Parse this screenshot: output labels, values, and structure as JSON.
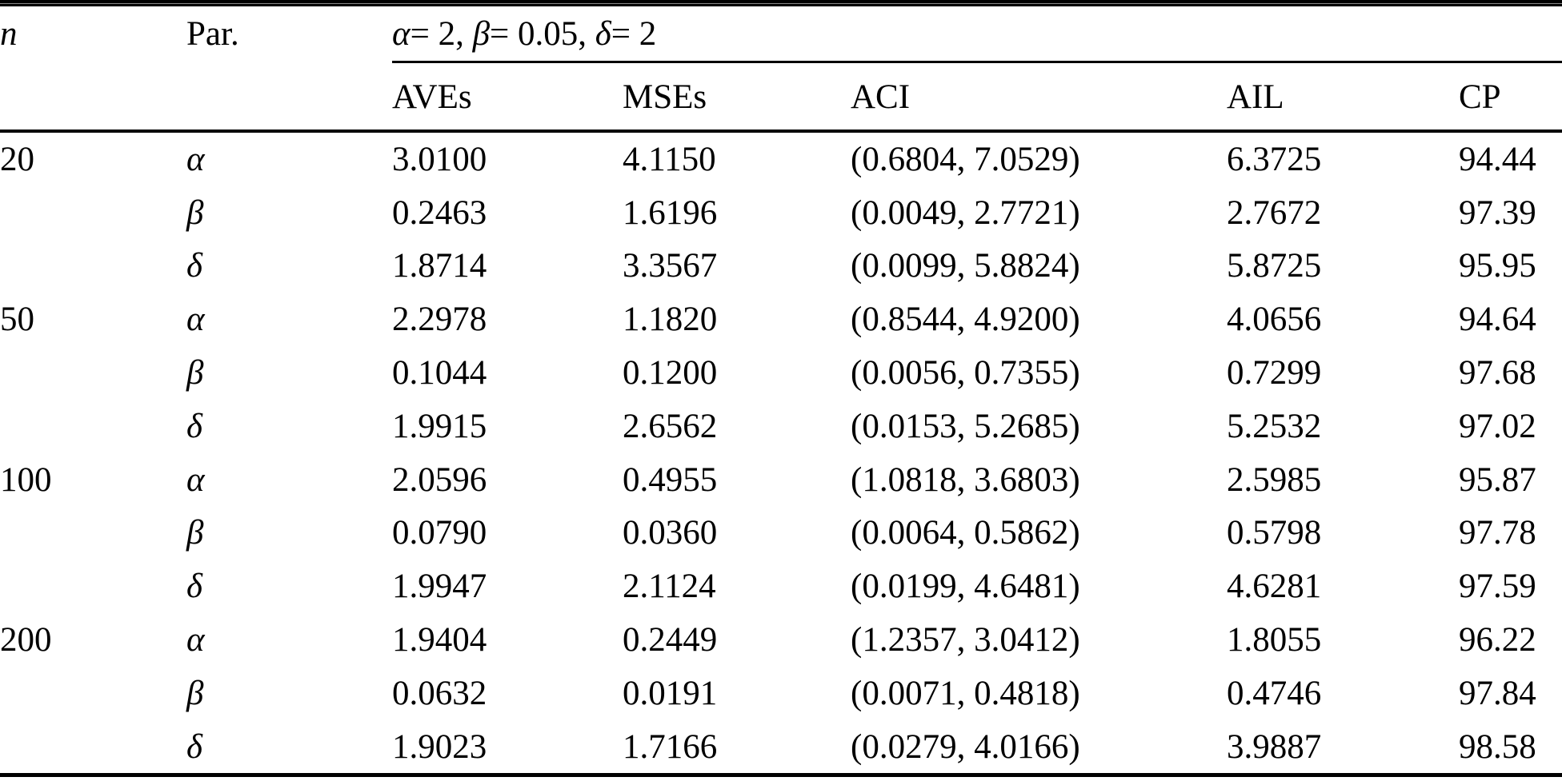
{
  "table": {
    "headers": {
      "n": "n",
      "par": "Par.",
      "aves": "AVEs",
      "mses": "MSEs",
      "aci": "ACI",
      "ail": "AIL",
      "cp": "CP"
    },
    "span_header": "α= 2, β= 0.05, δ= 2",
    "span_parts": [
      "α",
      "= 2, ",
      "β",
      "= 0.05, ",
      "δ",
      "= 2"
    ],
    "rows": [
      {
        "n": "20",
        "par": "α",
        "aves": "3.0100",
        "mses": "4.1150",
        "aci": "(0.6804, 7.0529)",
        "ail": "6.3725",
        "cp": "94.44"
      },
      {
        "n": "",
        "par": "β",
        "aves": "0.2463",
        "mses": "1.6196",
        "aci": "(0.0049, 2.7721)",
        "ail": "2.7672",
        "cp": "97.39"
      },
      {
        "n": "",
        "par": "δ",
        "aves": "1.8714",
        "mses": "3.3567",
        "aci": "(0.0099, 5.8824)",
        "ail": "5.8725",
        "cp": "95.95"
      },
      {
        "n": "50",
        "par": "α",
        "aves": "2.2978",
        "mses": "1.1820",
        "aci": "(0.8544, 4.9200)",
        "ail": "4.0656",
        "cp": "94.64"
      },
      {
        "n": "",
        "par": "β",
        "aves": "0.1044",
        "mses": "0.1200",
        "aci": "(0.0056, 0.7355)",
        "ail": "0.7299",
        "cp": "97.68"
      },
      {
        "n": "",
        "par": "δ",
        "aves": "1.9915",
        "mses": "2.6562",
        "aci": "(0.0153, 5.2685)",
        "ail": "5.2532",
        "cp": "97.02"
      },
      {
        "n": "100",
        "par": "α",
        "aves": "2.0596",
        "mses": "0.4955",
        "aci": "(1.0818, 3.6803)",
        "ail": "2.5985",
        "cp": "95.87"
      },
      {
        "n": "",
        "par": "β",
        "aves": "0.0790",
        "mses": "0.0360",
        "aci": "(0.0064, 0.5862)",
        "ail": "0.5798",
        "cp": "97.78"
      },
      {
        "n": "",
        "par": "δ",
        "aves": "1.9947",
        "mses": "2.1124",
        "aci": "(0.0199, 4.6481)",
        "ail": "4.6281",
        "cp": "97.59"
      },
      {
        "n": "200",
        "par": "α",
        "aves": "1.9404",
        "mses": "0.2449",
        "aci": "(1.2357, 3.0412)",
        "ail": "1.8055",
        "cp": "96.22"
      },
      {
        "n": "",
        "par": "β",
        "aves": "0.0632",
        "mses": "0.0191",
        "aci": "(0.0071, 0.4818)",
        "ail": "0.4746",
        "cp": "97.84"
      },
      {
        "n": "",
        "par": "δ",
        "aves": "1.9023",
        "mses": "1.7166",
        "aci": "(0.0279, 4.0166)",
        "ail": "3.9887",
        "cp": "98.58"
      }
    ]
  }
}
